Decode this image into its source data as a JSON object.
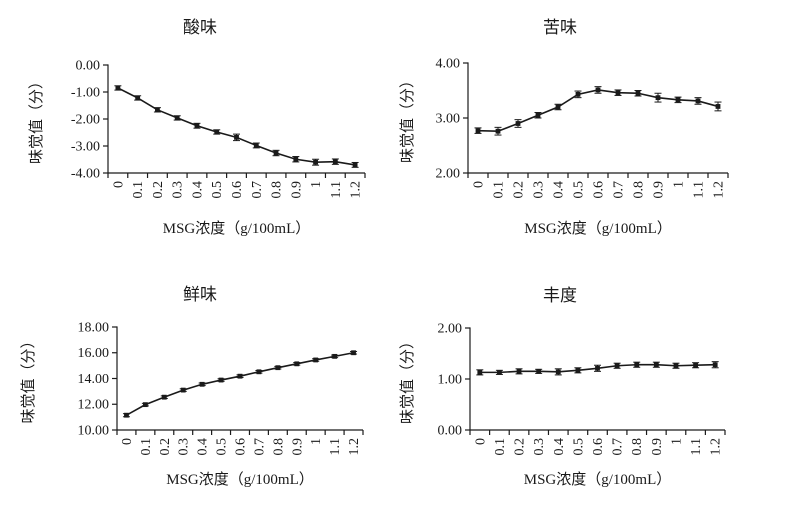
{
  "figure": {
    "background": "#ffffff",
    "ink_color": "#1a1a1a",
    "description_names": [
      "sour-chart",
      "bitter-chart",
      "umami-chart",
      "richness-chart"
    ]
  },
  "chart_data": [
    {
      "type": "line",
      "title": "酸味",
      "ylabel": "味觉值（分）",
      "xlabel": "MSG浓度（g/100mL）",
      "categories": [
        "0",
        "0.1",
        "0.2",
        "0.3",
        "0.4",
        "0.5",
        "0.6",
        "0.7",
        "0.8",
        "0.9",
        "1",
        "1.1",
        "1.2"
      ],
      "values": [
        -0.85,
        -1.22,
        -1.66,
        -1.96,
        -2.25,
        -2.48,
        -2.68,
        -2.98,
        -3.26,
        -3.49,
        -3.6,
        -3.58,
        -3.7
      ],
      "errors": [
        0.08,
        0.08,
        0.08,
        0.08,
        0.09,
        0.08,
        0.12,
        0.09,
        0.1,
        0.1,
        0.11,
        0.1,
        0.09
      ],
      "ylim": [
        -4,
        0
      ],
      "yticks": [
        0,
        -1,
        -2,
        -3,
        -4
      ],
      "ytick_labels": [
        "0.00",
        "-1.00",
        "-2.00",
        "-3.00",
        "-4.00"
      ],
      "marker": "square",
      "error_bars": true,
      "grid": false,
      "legend": "none"
    },
    {
      "type": "line",
      "title": "苦味",
      "ylabel": "味觉值（分）",
      "xlabel": "MSG浓度（g/100mL）",
      "categories": [
        "0",
        "0.1",
        "0.2",
        "0.3",
        "0.4",
        "0.5",
        "0.6",
        "0.7",
        "0.8",
        "0.9",
        "1",
        "1.1",
        "1.2"
      ],
      "values": [
        2.77,
        2.76,
        2.9,
        3.05,
        3.2,
        3.43,
        3.51,
        3.46,
        3.45,
        3.37,
        3.33,
        3.31,
        3.21
      ],
      "errors": [
        0.05,
        0.07,
        0.07,
        0.05,
        0.05,
        0.06,
        0.06,
        0.05,
        0.05,
        0.08,
        0.05,
        0.06,
        0.08
      ],
      "ylim": [
        2,
        4
      ],
      "yticks": [
        4,
        3,
        2
      ],
      "ytick_labels": [
        "4.00",
        "3.00",
        "2.00"
      ],
      "marker": "square",
      "error_bars": true,
      "grid": false,
      "legend": "none"
    },
    {
      "type": "line",
      "title": "鲜味",
      "ylabel": "味觉值（分）",
      "xlabel": "MSG浓度（g/100mL）",
      "categories": [
        "0",
        "0.1",
        "0.2",
        "0.3",
        "0.4",
        "0.5",
        "0.6",
        "0.7",
        "0.8",
        "0.9",
        "1",
        "1.1",
        "1.2"
      ],
      "values": [
        11.15,
        11.97,
        12.55,
        13.1,
        13.55,
        13.88,
        14.18,
        14.52,
        14.84,
        15.14,
        15.44,
        15.72,
        16.0
      ],
      "errors": [
        0.12,
        0.1,
        0.1,
        0.1,
        0.1,
        0.1,
        0.1,
        0.1,
        0.1,
        0.1,
        0.1,
        0.1,
        0.1
      ],
      "ylim": [
        10,
        18
      ],
      "yticks": [
        18,
        16,
        14,
        12,
        10
      ],
      "ytick_labels": [
        "18.00",
        "16.00",
        "14.00",
        "12.00",
        "10.00"
      ],
      "marker": "square",
      "error_bars": true,
      "grid": false,
      "legend": "none"
    },
    {
      "type": "line",
      "title": "丰度",
      "ylabel": "味觉值（分）",
      "xlabel": "MSG浓度（g/100mL）",
      "categories": [
        "0",
        "0.1",
        "0.2",
        "0.3",
        "0.4",
        "0.5",
        "0.6",
        "0.7",
        "0.8",
        "0.9",
        "1",
        "1.1",
        "1.2"
      ],
      "values": [
        1.13,
        1.13,
        1.15,
        1.15,
        1.14,
        1.17,
        1.21,
        1.26,
        1.28,
        1.28,
        1.26,
        1.27,
        1.28
      ],
      "errors": [
        0.05,
        0.04,
        0.05,
        0.04,
        0.06,
        0.05,
        0.06,
        0.05,
        0.05,
        0.05,
        0.05,
        0.05,
        0.06
      ],
      "ylim": [
        0,
        2
      ],
      "yticks": [
        2,
        1,
        0
      ],
      "ytick_labels": [
        "2.00",
        "1.00",
        "0.00"
      ],
      "marker": "square",
      "error_bars": true,
      "grid": false,
      "legend": "none"
    }
  ]
}
